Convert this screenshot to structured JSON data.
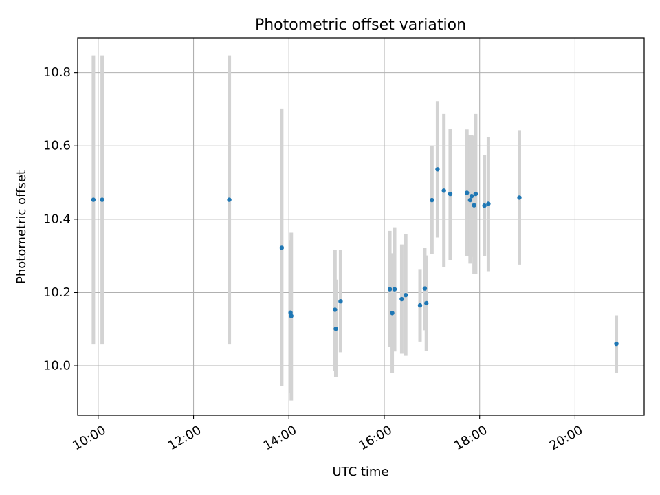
{
  "chart_data": {
    "type": "scatter",
    "title": "Photometric offset variation",
    "xlabel": "UTC time",
    "ylabel": "Photometric offset",
    "x_unit": "hours UTC",
    "xlim": [
      9.57,
      21.45
    ],
    "ylim": [
      9.865,
      10.895
    ],
    "x_ticks": [
      {
        "value": 10,
        "label": "10:00"
      },
      {
        "value": 12,
        "label": "12:00"
      },
      {
        "value": 14,
        "label": "14:00"
      },
      {
        "value": 16,
        "label": "16:00"
      },
      {
        "value": 18,
        "label": "18:00"
      },
      {
        "value": 20,
        "label": "20:00"
      }
    ],
    "y_ticks": [
      {
        "value": 10.0,
        "label": "10.0"
      },
      {
        "value": 10.2,
        "label": "10.2"
      },
      {
        "value": 10.4,
        "label": "10.4"
      },
      {
        "value": 10.6,
        "label": "10.6"
      },
      {
        "value": 10.8,
        "label": "10.8"
      }
    ],
    "grid": true,
    "colors": {
      "point": "#1f77b4",
      "errorbar": "#d3d3d3",
      "grid": "#b0b0b0"
    },
    "points": [
      {
        "t": "09:54",
        "y": 10.453,
        "lo": 10.058,
        "hi": 10.847
      },
      {
        "t": "10:05",
        "y": 10.453,
        "lo": 10.058,
        "hi": 10.847
      },
      {
        "t": "12:45",
        "y": 10.453,
        "lo": 10.058,
        "hi": 10.847
      },
      {
        "t": "13:51",
        "y": 10.322,
        "lo": 9.944,
        "hi": 10.702
      },
      {
        "t": "14:02",
        "y": 10.145,
        "lo": 9.927,
        "hi": 10.343
      },
      {
        "t": "14:03",
        "y": 10.136,
        "lo": 9.905,
        "hi": 10.363
      },
      {
        "t": "14:58",
        "y": 10.153,
        "lo": 9.987,
        "hi": 10.317
      },
      {
        "t": "14:59",
        "y": 10.101,
        "lo": 9.97,
        "hi": 10.235
      },
      {
        "t": "15:05",
        "y": 10.176,
        "lo": 10.037,
        "hi": 10.316
      },
      {
        "t": "16:07",
        "y": 10.209,
        "lo": 10.052,
        "hi": 10.368
      },
      {
        "t": "16:10",
        "y": 10.144,
        "lo": 9.981,
        "hi": 10.307
      },
      {
        "t": "16:13",
        "y": 10.209,
        "lo": 10.039,
        "hi": 10.378
      },
      {
        "t": "16:22",
        "y": 10.182,
        "lo": 10.033,
        "hi": 10.331
      },
      {
        "t": "16:27",
        "y": 10.193,
        "lo": 10.027,
        "hi": 10.36
      },
      {
        "t": "16:45",
        "y": 10.165,
        "lo": 10.066,
        "hi": 10.264
      },
      {
        "t": "16:51",
        "y": 10.211,
        "lo": 10.097,
        "hi": 10.322
      },
      {
        "t": "16:53",
        "y": 10.171,
        "lo": 10.041,
        "hi": 10.301
      },
      {
        "t": "17:00",
        "y": 10.452,
        "lo": 10.305,
        "hi": 10.601
      },
      {
        "t": "17:07",
        "y": 10.536,
        "lo": 10.35,
        "hi": 10.722
      },
      {
        "t": "17:15",
        "y": 10.478,
        "lo": 10.269,
        "hi": 10.687
      },
      {
        "t": "17:23",
        "y": 10.469,
        "lo": 10.289,
        "hi": 10.647
      },
      {
        "t": "17:44",
        "y": 10.472,
        "lo": 10.299,
        "hi": 10.645
      },
      {
        "t": "17:48",
        "y": 10.452,
        "lo": 10.279,
        "hi": 10.629
      },
      {
        "t": "17:50",
        "y": 10.463,
        "lo": 10.297,
        "hi": 10.63
      },
      {
        "t": "17:53",
        "y": 10.438,
        "lo": 10.25,
        "hi": 10.627
      },
      {
        "t": "17:55",
        "y": 10.469,
        "lo": 10.251,
        "hi": 10.687
      },
      {
        "t": "18:06",
        "y": 10.437,
        "lo": 10.3,
        "hi": 10.575
      },
      {
        "t": "18:11",
        "y": 10.442,
        "lo": 10.258,
        "hi": 10.624
      },
      {
        "t": "18:50",
        "y": 10.459,
        "lo": 10.276,
        "hi": 10.643
      },
      {
        "t": "20:52",
        "y": 10.06,
        "lo": 9.981,
        "hi": 10.138
      }
    ]
  }
}
